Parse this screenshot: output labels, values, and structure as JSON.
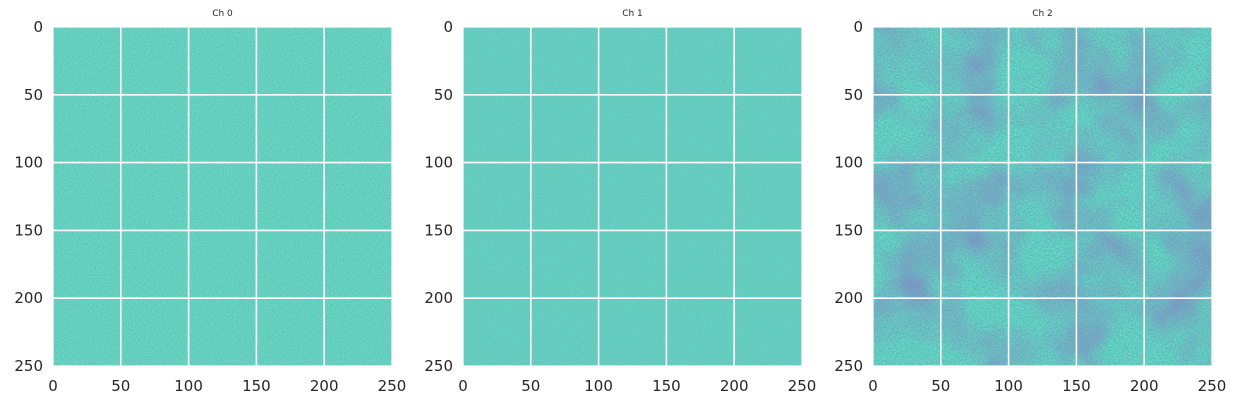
{
  "chart_data": [
    {
      "type": "heatmap",
      "title": "Ch 0",
      "xlim": [
        0,
        250
      ],
      "ylim": [
        250,
        0
      ],
      "xticks": [
        0,
        50,
        100,
        150,
        200,
        250
      ],
      "yticks": [
        0,
        50,
        100,
        150,
        200,
        250
      ],
      "xtick_labels": [
        "0",
        "50",
        "100",
        "150",
        "200",
        "250"
      ],
      "ytick_labels": [
        "0",
        "50",
        "100",
        "150",
        "200",
        "250"
      ],
      "grid": true,
      "colormap": "viridis",
      "texture": "fine high-frequency noise"
    },
    {
      "type": "heatmap",
      "title": "Ch 1",
      "xlim": [
        0,
        250
      ],
      "ylim": [
        250,
        0
      ],
      "xticks": [
        0,
        50,
        100,
        150,
        200,
        250
      ],
      "yticks": [
        0,
        50,
        100,
        150,
        200,
        250
      ],
      "xtick_labels": [
        "0",
        "50",
        "100",
        "150",
        "200",
        "250"
      ],
      "ytick_labels": [
        "0",
        "50",
        "100",
        "150",
        "200",
        "250"
      ],
      "grid": true,
      "colormap": "viridis",
      "texture": "fine high-frequency noise"
    },
    {
      "type": "heatmap",
      "title": "Ch 2",
      "xlim": [
        0,
        250
      ],
      "ylim": [
        250,
        0
      ],
      "xticks": [
        0,
        50,
        100,
        150,
        200,
        250
      ],
      "yticks": [
        0,
        50,
        100,
        150,
        200,
        250
      ],
      "xtick_labels": [
        "0",
        "50",
        "100",
        "150",
        "200",
        "250"
      ],
      "ytick_labels": [
        "0",
        "50",
        "100",
        "150",
        "200",
        "250"
      ],
      "grid": true,
      "colormap": "viridis",
      "texture": "blotchy with darker diagonal bands"
    }
  ],
  "colors": {
    "grid": "#ffffff",
    "text": "#262626",
    "viridis_dark": "#3b528b",
    "viridis_mid": "#21918c",
    "viridis_light": "#5ec962"
  }
}
